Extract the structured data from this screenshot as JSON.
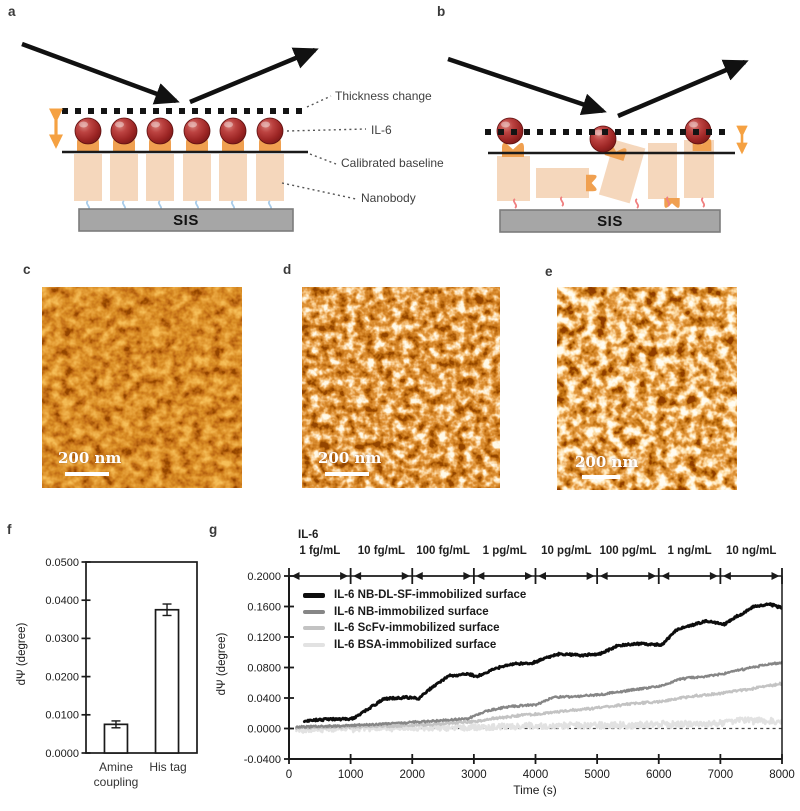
{
  "panels": {
    "a": "a",
    "b": "b",
    "c": "c",
    "d": "d",
    "e": "e",
    "f": "f",
    "g": "g"
  },
  "diagram_a": {
    "panel": "a",
    "substrate_label": "SIS",
    "labels": {
      "thickness": "Thickness change",
      "il6": "IL-6",
      "baseline": "Calibrated baseline",
      "nanobody": "Nanobody"
    }
  },
  "diagram_b": {
    "panel": "b",
    "substrate_label": "SIS"
  },
  "afm_images": [
    {
      "panel": "c",
      "scale_bar": "200 nm"
    },
    {
      "panel": "d",
      "scale_bar": "200 nm"
    },
    {
      "panel": "e",
      "scale_bar": "200 nm"
    }
  ],
  "colors": {
    "sphere_red": "#a83230",
    "nanobody_body": "#f5d7bc",
    "nanobody_orange": "#f0a050",
    "substrate_gray": "#a6a6a6",
    "tether_blue": "#a9cce9",
    "tether_red": "#f08080"
  },
  "chart_data": [
    {
      "panel": "f",
      "type": "bar",
      "categories": [
        "Amine coupling",
        "His tag"
      ],
      "values": [
        0.0075,
        0.0375
      ],
      "errors": [
        0.0009,
        0.0015
      ],
      "ylabel": "dΨ (degree)",
      "ylim": [
        0,
        0.05
      ],
      "yticks": [
        0,
        0.01,
        0.02,
        0.03,
        0.04,
        0.05
      ],
      "ytick_labels": [
        "0.0000",
        "0.0100",
        "0.0200",
        "0.0300",
        "0.0400",
        "0.0500"
      ],
      "bar_fill": "#ffffff",
      "bar_stroke": "#1a1a1a",
      "grid": false
    },
    {
      "panel": "g",
      "type": "line",
      "annotation_title": "IL-6",
      "segment_labels": [
        "1 fg/mL",
        "10 fg/mL",
        "100 fg/mL",
        "1 pg/mL",
        "10 pg/mL",
        "100 pg/mL",
        "1 ng/mL",
        "10 ng/mL"
      ],
      "xlabel": "Time (s)",
      "ylabel": "dΨ (degree)",
      "xlim": [
        0,
        8000
      ],
      "ylim": [
        -0.04,
        0.2
      ],
      "xticks": [
        0,
        1000,
        2000,
        3000,
        4000,
        5000,
        6000,
        7000,
        8000
      ],
      "yticks": [
        0.2,
        0.16,
        0.12,
        0.08,
        0.04,
        0,
        -0.04
      ],
      "ytick_labels": [
        "0.2000",
        "0.1600",
        "0.1200",
        "0.0800",
        "0.0400",
        "0.0000",
        "-0.0400"
      ],
      "zero_dashed_line": 0.0,
      "grid": false,
      "legend_position": "upper-left-inside",
      "series": [
        {
          "name": "IL-6 NB-DL-SF-immobilized surface",
          "color": "#0d0d0d",
          "width": 2.9,
          "noise": 0.0013,
          "points": [
            [
              250,
              0.01
            ],
            [
              600,
              0.012
            ],
            [
              1050,
              0.013
            ],
            [
              1250,
              0.024
            ],
            [
              1550,
              0.039
            ],
            [
              1900,
              0.041
            ],
            [
              2100,
              0.039
            ],
            [
              2350,
              0.056
            ],
            [
              2600,
              0.069
            ],
            [
              2900,
              0.072
            ],
            [
              3050,
              0.068
            ],
            [
              3300,
              0.077
            ],
            [
              3550,
              0.084
            ],
            [
              3950,
              0.086
            ],
            [
              4150,
              0.092
            ],
            [
              4400,
              0.098
            ],
            [
              4750,
              0.096
            ],
            [
              5050,
              0.098
            ],
            [
              5350,
              0.109
            ],
            [
              5700,
              0.111
            ],
            [
              6050,
              0.11
            ],
            [
              6300,
              0.13
            ],
            [
              6550,
              0.136
            ],
            [
              6800,
              0.141
            ],
            [
              7050,
              0.136
            ],
            [
              7250,
              0.146
            ],
            [
              7550,
              0.16
            ],
            [
              7800,
              0.163
            ],
            [
              8000,
              0.158
            ]
          ]
        },
        {
          "name": "IL-6 NB-immobilized surface",
          "color": "#868686",
          "width": 2.3,
          "noise": 0.0012,
          "points": [
            [
              120,
              0.002
            ],
            [
              1000,
              0.004
            ],
            [
              2000,
              0.008
            ],
            [
              2900,
              0.013
            ],
            [
              3200,
              0.023
            ],
            [
              3500,
              0.028
            ],
            [
              4000,
              0.031
            ],
            [
              4300,
              0.041
            ],
            [
              4700,
              0.042
            ],
            [
              5100,
              0.045
            ],
            [
              5600,
              0.051
            ],
            [
              6000,
              0.055
            ],
            [
              6350,
              0.065
            ],
            [
              6700,
              0.068
            ],
            [
              7000,
              0.071
            ],
            [
              7500,
              0.08
            ],
            [
              8000,
              0.087
            ]
          ]
        },
        {
          "name": "IL-6 ScFv-immobilized surface",
          "color": "#c3c3c3",
          "width": 2.3,
          "noise": 0.0014,
          "points": [
            [
              120,
              0.001
            ],
            [
              1000,
              0.002
            ],
            [
              2000,
              0.004
            ],
            [
              3000,
              0.009
            ],
            [
              3400,
              0.014
            ],
            [
              4000,
              0.019
            ],
            [
              4500,
              0.023
            ],
            [
              5000,
              0.027
            ],
            [
              5600,
              0.033
            ],
            [
              6000,
              0.035
            ],
            [
              6500,
              0.042
            ],
            [
              7000,
              0.046
            ],
            [
              7500,
              0.052
            ],
            [
              8000,
              0.059
            ]
          ]
        },
        {
          "name": "IL-6 BSA-immobilized surface",
          "color": "#e2e2e2",
          "width": 2.5,
          "noise": 0.004,
          "points": [
            [
              120,
              -0.001
            ],
            [
              1000,
              0.0
            ],
            [
              2000,
              0.001
            ],
            [
              3000,
              0.002
            ],
            [
              4000,
              0.003
            ],
            [
              5000,
              0.004
            ],
            [
              6000,
              0.005
            ],
            [
              6500,
              0.006
            ],
            [
              7000,
              0.007
            ],
            [
              7350,
              0.011
            ],
            [
              7700,
              0.01
            ],
            [
              8000,
              0.009
            ]
          ]
        }
      ]
    }
  ]
}
